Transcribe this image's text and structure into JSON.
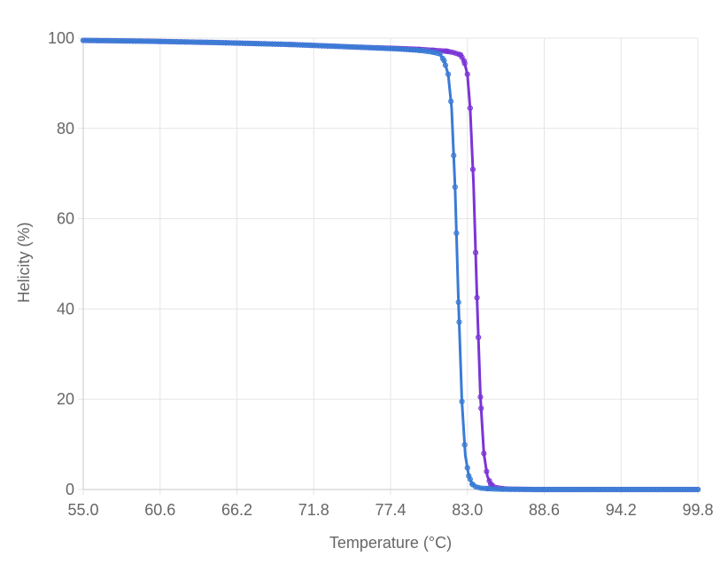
{
  "chart_data": {
    "type": "line",
    "xlabel": "Temperature (°C)",
    "ylabel": "Helicity (%)",
    "xlim": [
      55.0,
      99.8
    ],
    "ylim": [
      0,
      100
    ],
    "x_ticks": [
      "55.0",
      "60.6",
      "66.2",
      "71.8",
      "77.4",
      "83.0",
      "88.6",
      "94.2",
      "99.8"
    ],
    "y_ticks": [
      "0",
      "20",
      "40",
      "60",
      "80",
      "100"
    ],
    "grid": true,
    "series": [
      {
        "color": "#3a7bd5",
        "x": [
          55.0,
          60.0,
          65.0,
          70.0,
          75.0,
          78.0,
          79.5,
          80.5,
          81.0,
          81.3,
          81.6,
          81.85,
          82.1,
          82.35,
          82.6,
          82.85,
          83.1,
          83.35,
          83.6,
          84.0,
          84.5,
          85.0,
          86.0,
          88.0,
          90.0,
          95.0,
          99.8
        ],
        "y": [
          99.5,
          99.3,
          99.0,
          98.6,
          98.0,
          97.6,
          97.3,
          96.9,
          96.5,
          95.0,
          92.0,
          84.5,
          67.0,
          41.5,
          19.5,
          7.5,
          3.0,
          1.2,
          0.6,
          0.3,
          0.2,
          0.1,
          0.05,
          0.0,
          0.0,
          0.0,
          0.0
        ]
      },
      {
        "color": "#7b35d6",
        "x": [
          55.0,
          60.0,
          65.0,
          70.0,
          75.0,
          78.0,
          79.5,
          80.5,
          81.5,
          82.0,
          82.5,
          82.75,
          83.0,
          83.2,
          83.45,
          83.7,
          83.95,
          84.2,
          84.45,
          84.7,
          85.0,
          85.5,
          86.0,
          88.0,
          90.0,
          95.0,
          99.8
        ],
        "y": [
          99.5,
          99.3,
          99.0,
          98.6,
          98.0,
          97.7,
          97.5,
          97.3,
          97.1,
          96.8,
          96.3,
          95.0,
          92.0,
          84.5,
          67.5,
          42.5,
          20.5,
          8.0,
          3.0,
          1.2,
          0.5,
          0.2,
          0.1,
          0.0,
          0.0,
          0.0,
          0.0
        ]
      }
    ]
  }
}
